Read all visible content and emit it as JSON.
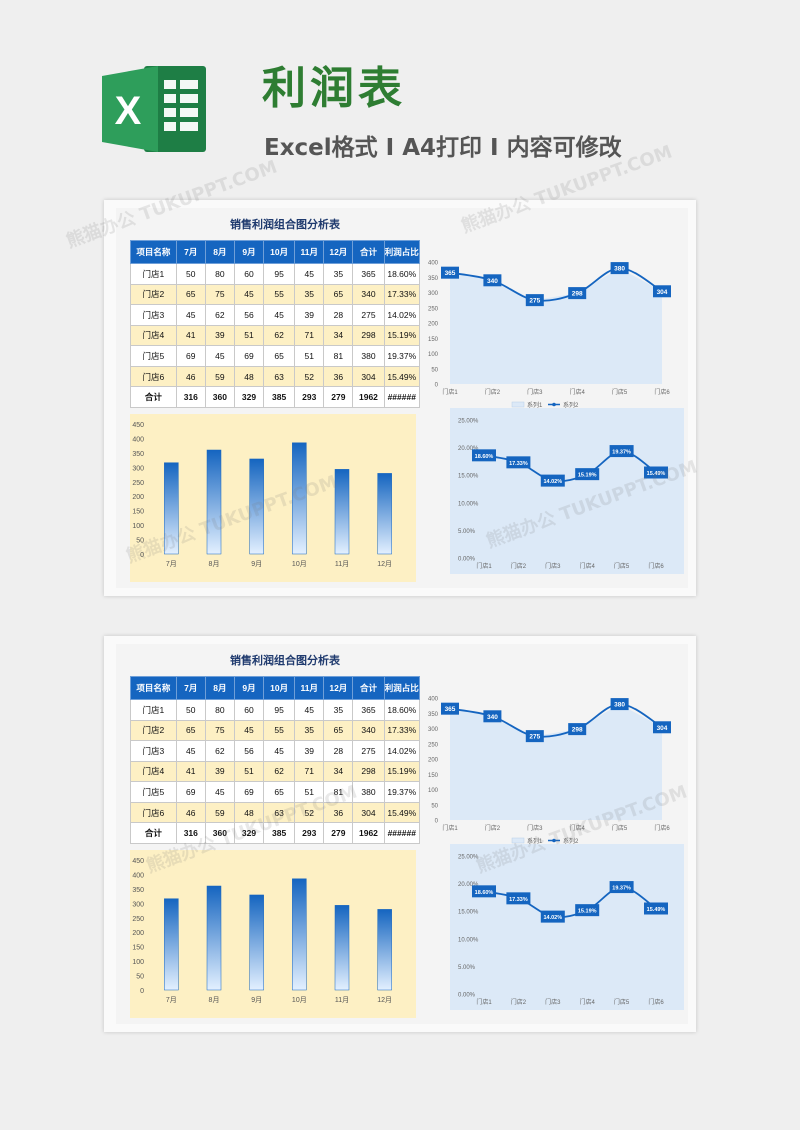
{
  "banner": {
    "title": "利润表",
    "subtitle": "Excel格式 I A4打印 I 内容可修改",
    "logo_letter": "X"
  },
  "watermark": "熊猫办公 TUKUPPT.COM",
  "sheet": {
    "title": "销售利润组合图分析表",
    "columns": [
      "项目名称",
      "7月",
      "8月",
      "9月",
      "10月",
      "11月",
      "12月",
      "合计",
      "利润占比"
    ],
    "rows": [
      [
        "门店1",
        "50",
        "80",
        "60",
        "95",
        "45",
        "35",
        "365",
        "18.60%"
      ],
      [
        "门店2",
        "65",
        "75",
        "45",
        "55",
        "35",
        "65",
        "340",
        "17.33%"
      ],
      [
        "门店3",
        "45",
        "62",
        "56",
        "45",
        "39",
        "28",
        "275",
        "14.02%"
      ],
      [
        "门店4",
        "41",
        "39",
        "51",
        "62",
        "71",
        "34",
        "298",
        "15.19%"
      ],
      [
        "门店5",
        "69",
        "45",
        "69",
        "65",
        "51",
        "81",
        "380",
        "19.37%"
      ],
      [
        "门店6",
        "46",
        "59",
        "48",
        "63",
        "52",
        "36",
        "304",
        "15.49%"
      ]
    ],
    "total_row": [
      "合计",
      "316",
      "360",
      "329",
      "385",
      "293",
      "279",
      "1962",
      "######"
    ]
  },
  "colors": {
    "brand_green": "#2e7d32",
    "header_blue": "#1565c0",
    "bar_bg": "#fdf0c4",
    "line_bg": "#dce9f7",
    "line": "#1565c0"
  },
  "chart_data": [
    {
      "type": "bar",
      "categories": [
        "7月",
        "8月",
        "9月",
        "10月",
        "11月",
        "12月"
      ],
      "values": [
        316,
        360,
        329,
        385,
        293,
        279
      ],
      "ylim": [
        0,
        450
      ],
      "yticks": [
        "0",
        "50",
        "100",
        "150",
        "200",
        "250",
        "300",
        "350",
        "400",
        "450"
      ]
    },
    {
      "type": "line",
      "categories": [
        "门店1",
        "门店2",
        "门店3",
        "门店4",
        "门店5",
        "门店6"
      ],
      "series": [
        {
          "name": "系列1",
          "values": [
            365,
            340,
            275,
            298,
            380,
            304
          ]
        },
        {
          "name": "系列2",
          "values": [
            365,
            340,
            275,
            298,
            380,
            304
          ]
        }
      ],
      "data_labels": [
        "365",
        "340",
        "275",
        "298",
        "380",
        "304"
      ],
      "ylim": [
        0,
        400
      ],
      "yticks": [
        "0",
        "50",
        "100",
        "150",
        "200",
        "250",
        "300",
        "350",
        "400"
      ],
      "legend": "bottom"
    },
    {
      "type": "line",
      "categories": [
        "门店1",
        "门店2",
        "门店3",
        "门店4",
        "门店5",
        "门店6"
      ],
      "values": [
        18.6,
        17.33,
        14.02,
        15.19,
        19.37,
        15.49
      ],
      "data_labels": [
        "18.60%",
        "17.33%",
        "14.02%",
        "15.19%",
        "19.37%",
        "15.49%"
      ],
      "ylim": [
        0,
        25
      ],
      "yticks": [
        "0.00%",
        "5.00%",
        "10.00%",
        "15.00%",
        "20.00%",
        "25.00%"
      ]
    }
  ]
}
